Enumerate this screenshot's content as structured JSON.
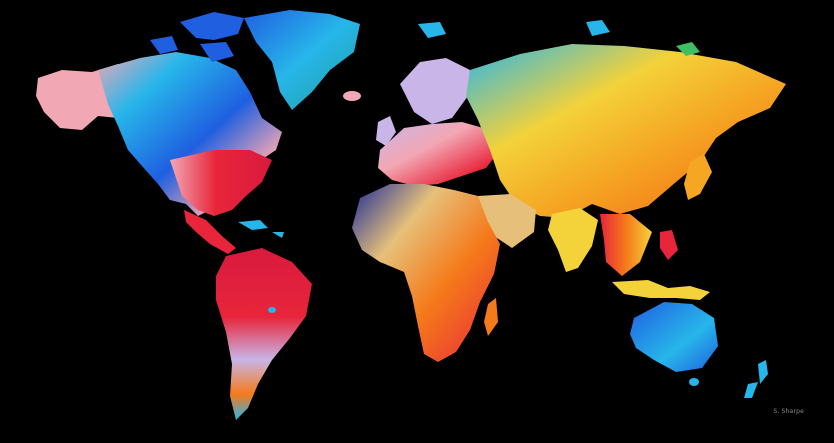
{
  "artwork": {
    "signature": "S. Sharpe",
    "background": "#000000",
    "palette": {
      "cyan": "#27b6ea",
      "blue": "#1f5fe0",
      "deep_blue": "#1a2b9b",
      "navy": "#23306b",
      "red": "#e8253a",
      "crimson": "#d81a3e",
      "orange": "#f57a1a",
      "amber": "#f5a623",
      "yellow": "#f3d23a",
      "tan": "#e6c07a",
      "pink": "#f2a7b4",
      "lavender": "#c9b5e8",
      "green": "#3fbf62",
      "teal": "#1e9d9a"
    }
  }
}
